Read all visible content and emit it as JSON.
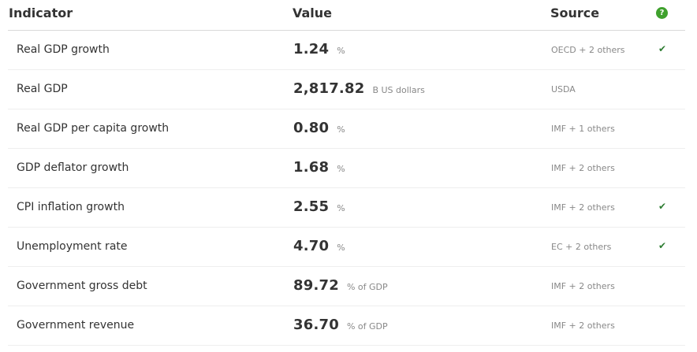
{
  "header": {
    "indicator": "Indicator",
    "value": "Value",
    "source": "Source",
    "help": "?"
  },
  "rows": [
    {
      "indicator": "Real GDP growth",
      "value": "1.24",
      "unit": "%",
      "source": "OECD + 2 others",
      "check": "✔"
    },
    {
      "indicator": "Real GDP",
      "value": "2,817.82",
      "unit": "B US dollars",
      "source": "USDA",
      "check": ""
    },
    {
      "indicator": "Real GDP per capita growth",
      "value": "0.80",
      "unit": "%",
      "source": "IMF + 1 others",
      "check": ""
    },
    {
      "indicator": "GDP deflator growth",
      "value": "1.68",
      "unit": "%",
      "source": "IMF + 2 others",
      "check": ""
    },
    {
      "indicator": "CPI inflation growth",
      "value": "2.55",
      "unit": "%",
      "source": "IMF + 2 others",
      "check": "✔"
    },
    {
      "indicator": "Unemployment rate",
      "value": "4.70",
      "unit": "%",
      "source": "EC + 2 others",
      "check": "✔"
    },
    {
      "indicator": "Government gross debt",
      "value": "89.72",
      "unit": "% of GDP",
      "source": "IMF + 2 others",
      "check": ""
    },
    {
      "indicator": "Government revenue",
      "value": "36.70",
      "unit": "% of GDP",
      "source": "IMF + 2 others",
      "check": ""
    }
  ],
  "colors": {
    "help_icon": "#3fa12d",
    "check": "#2e7d32",
    "muted_text": "#888888"
  }
}
